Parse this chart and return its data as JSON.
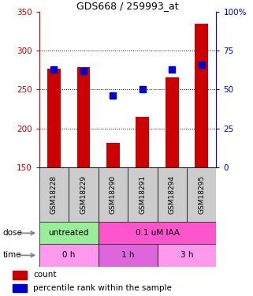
{
  "title": "GDS668 / 259993_at",
  "samples": [
    "GSM18228",
    "GSM18229",
    "GSM18290",
    "GSM18291",
    "GSM18294",
    "GSM18295"
  ],
  "counts": [
    277,
    279,
    181,
    215,
    266,
    335
  ],
  "percentile_ranks": [
    63,
    62,
    46,
    50,
    63,
    66
  ],
  "ylim_left": [
    150,
    350
  ],
  "ylim_right": [
    0,
    100
  ],
  "yticks_left": [
    150,
    200,
    250,
    300,
    350
  ],
  "yticks_right": [
    0,
    25,
    50,
    75,
    100
  ],
  "bar_color": "#cc0000",
  "dot_color": "#0000cc",
  "bar_width": 0.45,
  "dot_size": 30,
  "dose_groups": [
    {
      "label": "untreated",
      "span": [
        0,
        2
      ],
      "color": "#99ee99"
    },
    {
      "label": "0.1 uM IAA",
      "span": [
        2,
        6
      ],
      "color": "#ff55cc"
    }
  ],
  "time_groups": [
    {
      "label": "0 h",
      "span": [
        0,
        2
      ],
      "color": "#ff99ee"
    },
    {
      "label": "1 h",
      "span": [
        2,
        4
      ],
      "color": "#dd66dd"
    },
    {
      "label": "3 h",
      "span": [
        4,
        6
      ],
      "color": "#ff99ee"
    }
  ],
  "legend_count_color": "#cc0000",
  "legend_dot_color": "#0000cc",
  "left_axis_color": "#cc0000",
  "right_axis_color": "#0000cc",
  "background_color": "#ffffff",
  "sample_box_color": "#cccccc",
  "grid_yticks": [
    200,
    250,
    300
  ]
}
